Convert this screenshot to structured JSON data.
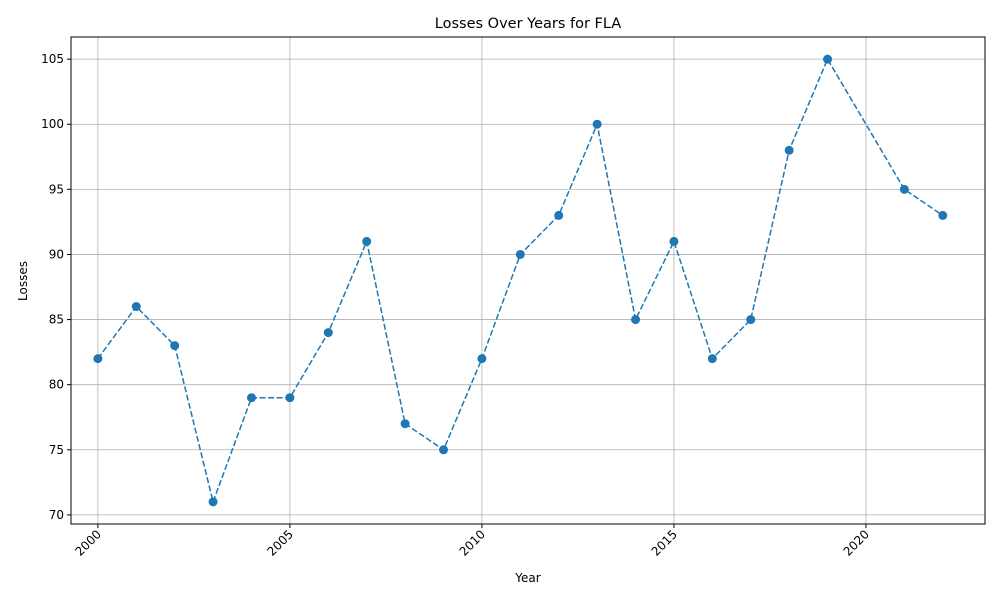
{
  "chart_data": {
    "type": "line",
    "title": "Losses Over Years for FLA",
    "xlabel": "Year",
    "ylabel": "Losses",
    "xlim": [
      1999.3,
      2023.1
    ],
    "ylim": [
      69.3,
      106.7
    ],
    "xticks": [
      2000,
      2005,
      2010,
      2015,
      2020
    ],
    "xtick_labels": [
      "2000",
      "2005",
      "2010",
      "2015",
      "2020"
    ],
    "yticks": [
      70,
      75,
      80,
      85,
      90,
      95,
      100,
      105
    ],
    "ytick_labels": [
      "70",
      "75",
      "80",
      "85",
      "90",
      "95",
      "100",
      "105"
    ],
    "grid": true,
    "line_style": "dashed",
    "marker": "circle",
    "color": "#1f77b4",
    "x": [
      2000,
      2001,
      2002,
      2003,
      2004,
      2005,
      2006,
      2007,
      2008,
      2009,
      2010,
      2011,
      2012,
      2013,
      2014,
      2015,
      2016,
      2017,
      2018,
      2019,
      2021,
      2022
    ],
    "series": [
      {
        "values": [
          82,
          86,
          83,
          71,
          79,
          79,
          84,
          91,
          77,
          75,
          82,
          90,
          93,
          100,
          85,
          91,
          82,
          85,
          98,
          105,
          95,
          93
        ]
      }
    ]
  }
}
